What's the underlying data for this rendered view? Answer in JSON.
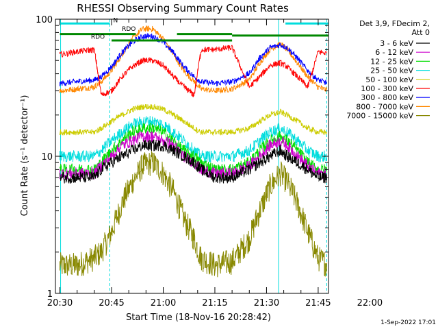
{
  "chart_data": {
    "type": "line",
    "title": "RHESSI Observing Summary Count Rates",
    "xlabel": "Start Time (18-Nov-16 20:28:42)",
    "ylabel": "Count Rate (s⁻¹ detector⁻¹)",
    "y_scale": "log",
    "ylim": [
      1,
      100
    ],
    "xlim_minutes_after_2030": [
      -1.3,
      78
    ],
    "x_tick_labels": [
      "20:30",
      "20:45",
      "21:00",
      "21:15",
      "21:30",
      "21:45",
      "22:00"
    ],
    "x_tick_minutes": [
      0,
      15,
      30,
      45,
      60,
      75,
      90
    ],
    "y_tick_labels": [
      "1",
      "10",
      "100"
    ],
    "y_tick_values": [
      1,
      10,
      100
    ],
    "legend_header": [
      "Det 3,9, FDecim 2,",
      "Att 0"
    ],
    "legend_position": "right",
    "timestamp": "1-Sep-2022 17:01",
    "series": [
      {
        "name": "3 - 6 keV",
        "color": "#000000",
        "x": [
          0,
          5,
          10,
          12,
          15,
          18,
          21,
          24,
          27,
          30,
          33,
          36,
          39,
          41,
          45,
          50,
          55,
          58,
          61,
          64,
          66,
          69,
          72,
          75,
          78
        ],
        "y": [
          7,
          7,
          7,
          8,
          9,
          10,
          11,
          12,
          12,
          12,
          11,
          10,
          9,
          8,
          7,
          7,
          8,
          9,
          10,
          11,
          10,
          9,
          8,
          7,
          7
        ]
      },
      {
        "name": "6 - 12 keV",
        "color": "#cc00cc",
        "x": [
          0,
          5,
          10,
          12,
          15,
          18,
          21,
          24,
          27,
          30,
          33,
          36,
          39,
          41,
          45,
          50,
          55,
          58,
          61,
          64,
          66,
          69,
          72,
          75,
          78
        ],
        "y": [
          7.5,
          7.5,
          7.5,
          8.5,
          10,
          12,
          13,
          14,
          14,
          13,
          12,
          10,
          9,
          8,
          7.5,
          7.5,
          8.5,
          10,
          12,
          13,
          12,
          10,
          8.5,
          7.5,
          7.5
        ]
      },
      {
        "name": "12 - 25 keV",
        "color": "#00dd00",
        "x": [
          0,
          5,
          10,
          12,
          15,
          18,
          21,
          24,
          27,
          30,
          33,
          36,
          39,
          41,
          45,
          50,
          55,
          58,
          61,
          64,
          66,
          69,
          72,
          75,
          78
        ],
        "y": [
          8,
          8,
          8,
          9,
          11,
          13,
          15,
          16,
          16,
          15,
          13,
          11,
          10,
          9,
          8,
          8,
          9,
          11,
          13,
          14,
          13,
          11,
          9,
          8,
          8
        ]
      },
      {
        "name": "25 - 50 keV",
        "color": "#00dddd",
        "x": [
          0,
          5,
          10,
          12,
          15,
          18,
          21,
          24,
          27,
          30,
          33,
          36,
          39,
          41,
          45,
          50,
          55,
          58,
          61,
          64,
          66,
          69,
          72,
          75,
          78
        ],
        "y": [
          10,
          10,
          10,
          11,
          13,
          15,
          17,
          18,
          18,
          17,
          15,
          13,
          11,
          10,
          10,
          10,
          11,
          13,
          15,
          16,
          15,
          13,
          11,
          10,
          10
        ]
      },
      {
        "name": "50 - 100 keV",
        "color": "#cccc00",
        "x": [
          0,
          5,
          10,
          12,
          15,
          18,
          21,
          24,
          27,
          30,
          33,
          36,
          39,
          41,
          45,
          50,
          55,
          58,
          61,
          64,
          66,
          69,
          72,
          75,
          78
        ],
        "y": [
          15,
          15,
          15,
          16,
          18,
          20,
          22,
          23,
          23,
          22,
          20,
          18,
          16,
          15,
          15,
          15,
          16,
          18,
          20,
          21,
          20,
          18,
          16,
          15,
          15
        ]
      },
      {
        "name": "100 - 300 keV",
        "color": "#ff0000",
        "x": [
          0,
          5,
          10,
          12,
          15,
          18,
          21,
          24,
          27,
          30,
          33,
          36,
          39,
          41,
          45,
          50,
          55,
          58,
          61,
          64,
          66,
          69,
          72,
          75,
          78
        ],
        "y": [
          55,
          58,
          60,
          28,
          30,
          38,
          45,
          50,
          50,
          46,
          38,
          32,
          28,
          60,
          60,
          62,
          32,
          38,
          46,
          48,
          45,
          38,
          32,
          58,
          56
        ]
      },
      {
        "name": "300 - 800 keV",
        "color": "#0000ff",
        "x": [
          0,
          5,
          10,
          12,
          15,
          18,
          21,
          24,
          27,
          30,
          33,
          36,
          39,
          41,
          45,
          50,
          55,
          58,
          61,
          64,
          66,
          69,
          72,
          75,
          78
        ],
        "y": [
          34,
          35,
          36,
          38,
          45,
          57,
          68,
          75,
          75,
          68,
          57,
          45,
          38,
          35,
          34,
          35,
          40,
          52,
          62,
          65,
          62,
          52,
          42,
          36,
          34
        ]
      },
      {
        "name": "800 - 7000 keV",
        "color": "#ff8800",
        "x": [
          0,
          5,
          10,
          12,
          15,
          18,
          21,
          24,
          27,
          30,
          33,
          36,
          39,
          41,
          45,
          50,
          55,
          58,
          61,
          64,
          66,
          69,
          72,
          75,
          78
        ],
        "y": [
          30,
          31,
          32,
          35,
          42,
          55,
          72,
          85,
          85,
          72,
          55,
          42,
          35,
          31,
          30,
          31,
          36,
          48,
          60,
          66,
          60,
          48,
          38,
          32,
          30
        ]
      },
      {
        "name": "7000 - 15000 keV",
        "color": "#888800",
        "x": [
          0,
          5,
          10,
          12,
          15,
          18,
          21,
          24,
          27,
          30,
          33,
          36,
          39,
          41,
          45,
          50,
          55,
          58,
          61,
          64,
          66,
          69,
          72,
          75,
          78
        ],
        "y": [
          1.6,
          1.6,
          1.8,
          2,
          2.8,
          4.5,
          6.5,
          8.5,
          9,
          7.5,
          5.5,
          3.5,
          2.5,
          1.8,
          1.6,
          1.7,
          2.5,
          4,
          6,
          7.5,
          6.5,
          4.5,
          2.8,
          1.8,
          1.6
        ]
      }
    ],
    "annotations": [
      {
        "text": "N",
        "color": "#00aaaa",
        "x": 15.5,
        "y": 95
      },
      {
        "text": "RDO",
        "color": "#006600",
        "x": 18.0,
        "y": 82
      },
      {
        "text": "RDO",
        "color": "#006600",
        "x": 9.0,
        "y": 72
      }
    ],
    "status_bars": [
      {
        "color": "#00dddd",
        "x_start": 0,
        "x_end": 14.5,
        "y": 93
      },
      {
        "color": "#00dddd",
        "x_start": 65.5,
        "x_end": 78,
        "y": 93
      },
      {
        "color": "#008800",
        "x_start": 0,
        "x_end": 22,
        "y": 78
      },
      {
        "color": "#008800",
        "x_start": 34,
        "x_end": 50,
        "y": 78
      },
      {
        "color": "#008800",
        "x_start": 50,
        "x_end": 78,
        "y": 76
      },
      {
        "color": "#008800",
        "x_start": 15,
        "x_end": 50,
        "y": 70
      }
    ],
    "vertical_lines": [
      {
        "x": 0.2,
        "color": "#00dddd",
        "style": "solid"
      },
      {
        "x": 14.5,
        "color": "#00dddd",
        "style": "dashed"
      },
      {
        "x": 63.5,
        "color": "#00dddd",
        "style": "solid"
      },
      {
        "x": 77.5,
        "color": "#00dddd",
        "style": "dashed"
      }
    ]
  }
}
